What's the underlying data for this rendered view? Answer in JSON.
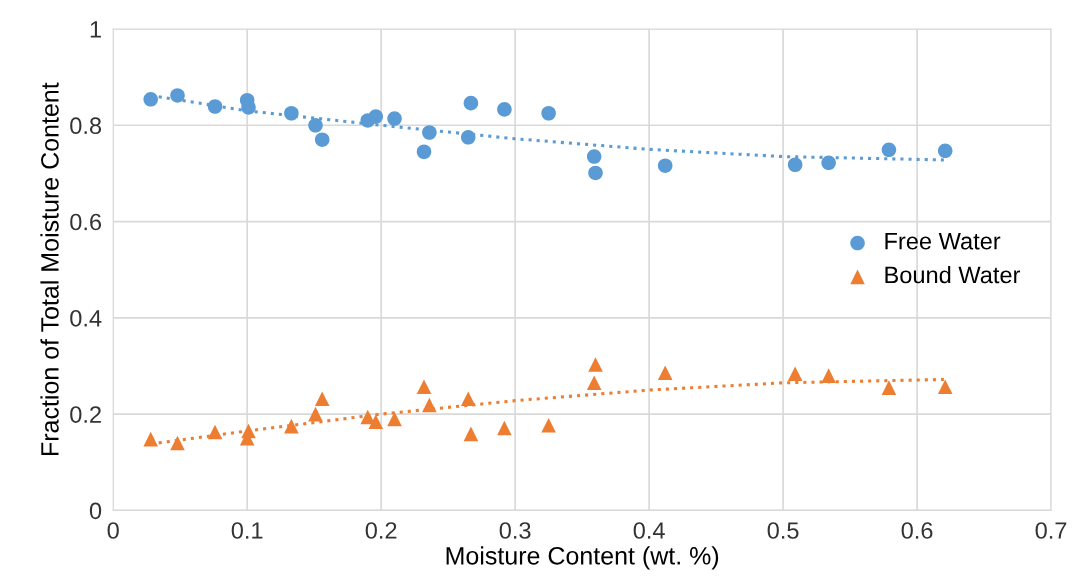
{
  "chart_data": {
    "type": "scatter",
    "xlabel": "Moisture Content (wt. %)",
    "ylabel": "Fraction of Total Moisture Content",
    "xlim": [
      0,
      0.7
    ],
    "xticks": [
      0,
      0.1,
      0.2,
      0.3,
      0.4,
      0.5,
      0.6,
      0.7
    ],
    "ylim": [
      0,
      1
    ],
    "yticks": [
      0,
      0.2,
      0.4,
      0.6,
      0.8,
      1
    ],
    "grid": true,
    "legend": "right",
    "series": [
      {
        "name": "Free Water",
        "color": "#5b9bd5",
        "marker": "circle",
        "x": [
          0.028,
          0.048,
          0.076,
          0.1,
          0.101,
          0.133,
          0.151,
          0.156,
          0.19,
          0.196,
          0.21,
          0.232,
          0.236,
          0.265,
          0.267,
          0.292,
          0.325,
          0.359,
          0.36,
          0.412,
          0.509,
          0.534,
          0.579,
          0.621
        ],
        "values": [
          0.854,
          0.862,
          0.839,
          0.852,
          0.837,
          0.825,
          0.8,
          0.77,
          0.81,
          0.818,
          0.814,
          0.745,
          0.785,
          0.775,
          0.846,
          0.833,
          0.825,
          0.735,
          0.701,
          0.716,
          0.718,
          0.722,
          0.749,
          0.747
        ]
      },
      {
        "name": "Bound Water",
        "color": "#ed7d31",
        "marker": "triangle",
        "x": [
          0.028,
          0.048,
          0.076,
          0.1,
          0.101,
          0.133,
          0.151,
          0.156,
          0.19,
          0.196,
          0.21,
          0.232,
          0.236,
          0.265,
          0.267,
          0.292,
          0.325,
          0.359,
          0.36,
          0.412,
          0.509,
          0.534,
          0.579,
          0.621
        ],
        "values": [
          0.148,
          0.14,
          0.163,
          0.15,
          0.165,
          0.175,
          0.2,
          0.232,
          0.194,
          0.184,
          0.19,
          0.257,
          0.219,
          0.232,
          0.159,
          0.171,
          0.177,
          0.265,
          0.303,
          0.286,
          0.284,
          0.28,
          0.255,
          0.257
        ]
      },
      {
        "type": "line",
        "color": "#5b9bd5",
        "line_style": "dotted",
        "marker": "none",
        "x": [
          0.028,
          0.1,
          0.2,
          0.3,
          0.4,
          0.5,
          0.62
        ],
        "values": [
          0.862,
          0.83,
          0.8,
          0.772,
          0.75,
          0.735,
          0.728
        ]
      },
      {
        "type": "line",
        "color": "#ed7d31",
        "line_style": "dotted",
        "marker": "none",
        "x": [
          0.028,
          0.1,
          0.2,
          0.3,
          0.4,
          0.5,
          0.62
        ],
        "values": [
          0.138,
          0.165,
          0.2,
          0.228,
          0.25,
          0.265,
          0.272
        ]
      }
    ]
  }
}
